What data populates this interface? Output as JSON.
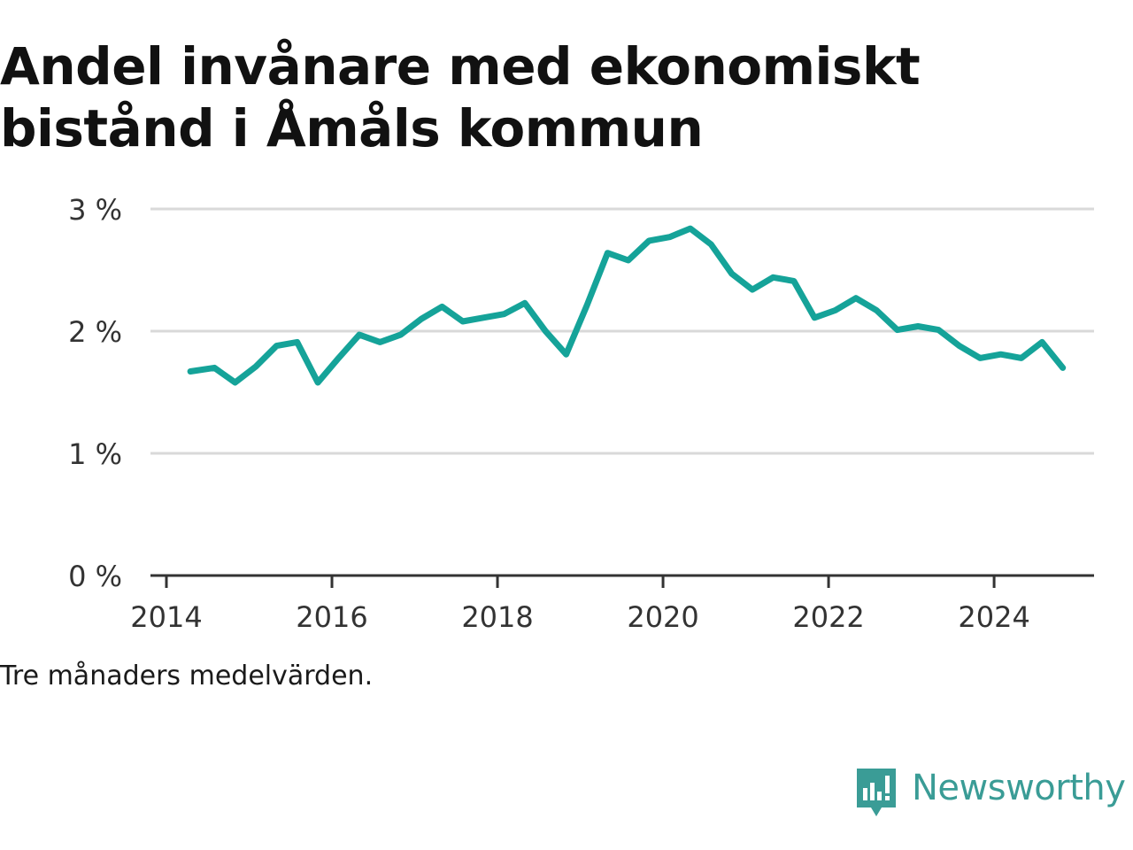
{
  "title_lines": [
    "Andel invånare med ekonomiskt",
    "bistånd i Åmåls kommun"
  ],
  "note": "Tre månaders medelvärden.",
  "brand": "Newsworthy",
  "colors": {
    "line": "#15a399",
    "grid": "#d9d9d9",
    "axis": "#333333",
    "brand": "#3a9c96"
  },
  "chart_data": {
    "type": "line",
    "title": "Andel invånare med ekonomiskt bistånd i Åmåls kommun",
    "xlabel": "",
    "ylabel": "",
    "xlim": [
      2014,
      2025.4
    ],
    "ylim": [
      0,
      3
    ],
    "x_ticks": [
      2014,
      2016,
      2018,
      2020,
      2022,
      2024
    ],
    "y_ticks": [
      0,
      1,
      2,
      3
    ],
    "y_tick_labels": [
      "0 %",
      "1 %",
      "2 %",
      "3 %"
    ],
    "grid": true,
    "series": [
      {
        "x": [
          2014.29,
          2014.58,
          2014.83,
          2015.08,
          2015.33,
          2015.58,
          2015.83,
          2016.08,
          2016.33,
          2016.58,
          2016.83,
          2017.08,
          2017.33,
          2017.58,
          2017.83,
          2018.08,
          2018.33,
          2018.58,
          2018.83,
          2019.08,
          2019.33,
          2019.58,
          2019.83,
          2020.08,
          2020.33,
          2020.58,
          2020.83,
          2021.08,
          2021.33,
          2021.58,
          2021.83,
          2022.08,
          2022.33,
          2022.58,
          2022.83,
          2023.08,
          2023.33,
          2023.58,
          2023.83,
          2024.08,
          2024.33,
          2024.58,
          2024.83
        ],
        "values": [
          1.67,
          1.7,
          1.58,
          1.71,
          1.88,
          1.91,
          1.58,
          1.78,
          1.97,
          1.91,
          1.97,
          2.1,
          2.2,
          2.08,
          2.11,
          2.14,
          2.23,
          2.0,
          1.81,
          2.21,
          2.64,
          2.58,
          2.74,
          2.77,
          2.84,
          2.71,
          2.47,
          2.34,
          2.44,
          2.41,
          2.11,
          2.17,
          2.27,
          2.17,
          2.01,
          2.04,
          2.01,
          1.88,
          1.78,
          1.81,
          1.78,
          1.91,
          1.7
        ]
      }
    ]
  }
}
